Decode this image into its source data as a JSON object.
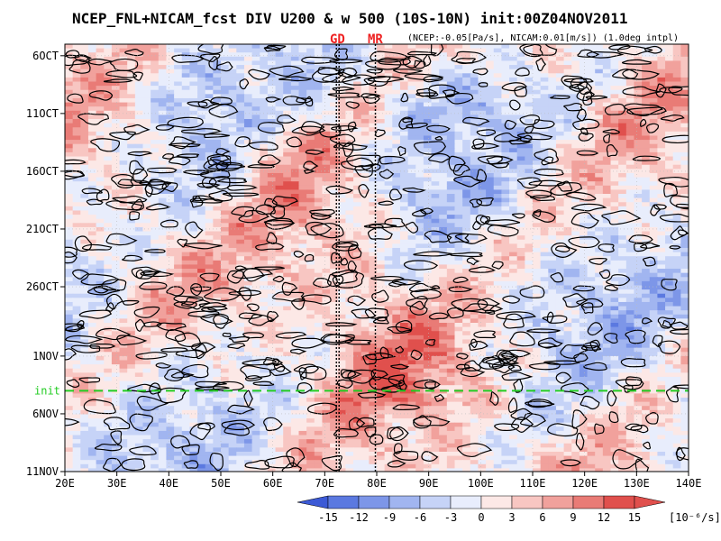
{
  "header": {
    "title": "NCEP_FNL+NICAM_fcst DIV U200 & w 500 (10S-10N) init:00Z04NOV2011",
    "subtitle": "(NCEP:-0.05[Pa/s], NICAM:0.01[m/s]) (1.0deg intpl)"
  },
  "markers": {
    "gd_label": "GD",
    "mr_label": "MR",
    "init_label": "init"
  },
  "colors": {
    "negative_strong": "#3b5fd6",
    "negative_weak": "#dfe6fb",
    "positive_weak": "#fbe1df",
    "positive_strong": "#e04848",
    "contour": "#000000",
    "init_line": "#22cc22",
    "marker_label": "#ee2222"
  },
  "chart_data": {
    "type": "heatmap",
    "title": "NCEP_FNL+NICAM_fcst DIV U200 & w 500 (10S-10N) init:00Z04NOV2011",
    "xlabel": "",
    "ylabel": "",
    "x_range": [
      "20E",
      "140E"
    ],
    "x_ticks": [
      "20E",
      "30E",
      "40E",
      "50E",
      "60E",
      "70E",
      "80E",
      "90E",
      "100E",
      "110E",
      "120E",
      "130E",
      "140E"
    ],
    "x_tick_values": [
      20,
      30,
      40,
      50,
      60,
      70,
      80,
      90,
      100,
      110,
      120,
      130,
      140
    ],
    "y_range": [
      "5OCT",
      "11NOV"
    ],
    "y_ticks": [
      "6OCT",
      "11OCT",
      "16OCT",
      "21OCT",
      "26OCT",
      "1NOV",
      "6NOV",
      "11NOV"
    ],
    "y_tick_day_index": [
      1,
      6,
      11,
      16,
      21,
      27,
      32,
      37
    ],
    "init_day_index": 30,
    "vertical_markers": [
      {
        "label": "GD",
        "lon": 72.5
      },
      {
        "label": "MR",
        "lon": 80
      }
    ],
    "colorbar": {
      "labels": [
        "-15",
        "-12",
        "-9",
        "-6",
        "-3",
        "0",
        "3",
        "6",
        "9",
        "12",
        "15"
      ],
      "levels": [
        -15,
        -12,
        -9,
        -6,
        -3,
        0,
        3,
        6,
        9,
        12,
        15
      ],
      "unit": "[10⁻⁶/s]"
    },
    "grid": true
  }
}
